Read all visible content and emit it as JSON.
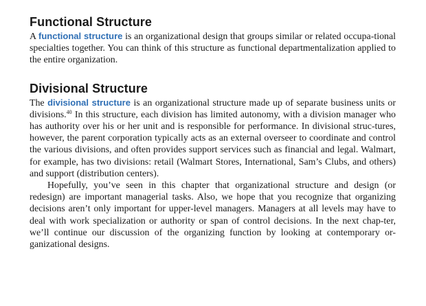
{
  "sections": [
    {
      "heading": "Functional Structure",
      "paragraph": {
        "lead": "A ",
        "term": "functional structure",
        "rest": " is an organizational design that groups similar or related occupa-tional specialties together. You can think of this structure as functional departmentalization applied to the entire organization."
      }
    },
    {
      "heading": "Divisional Structure",
      "paragraph": {
        "lead": "The ",
        "term": "divisional structure",
        "mid": " is an organizational structure made up of separate business units or divisions.",
        "footnote": "40",
        "rest": " In this structure, each division has limited autonomy, with a division manager who has authority over his or her unit and is responsible for performance. In divisional struc-tures, however, the parent corporation typically acts as an external overseer to coordinate and control the various divisions, and often provides support services such as financial and legal. Walmart, for example, has two divisions: retail (Walmart Stores, International, Sam’s Clubs, and others) and support (distribution centers)."
      },
      "paragraph2": "Hopefully, you’ve seen in this chapter that organizational structure and design (or redesign) are important managerial tasks. Also, we hope that you recognize that organizing decisions aren’t only important for upper-level managers. Managers at all levels may have to deal with work specialization or authority or span of control decisions. In the next chap-ter, we’ll continue our discussion of the organizing function by looking at contemporary or-ganizational designs."
    }
  ],
  "colors": {
    "term": "#2f6fb5",
    "text": "#1a1a1a"
  }
}
